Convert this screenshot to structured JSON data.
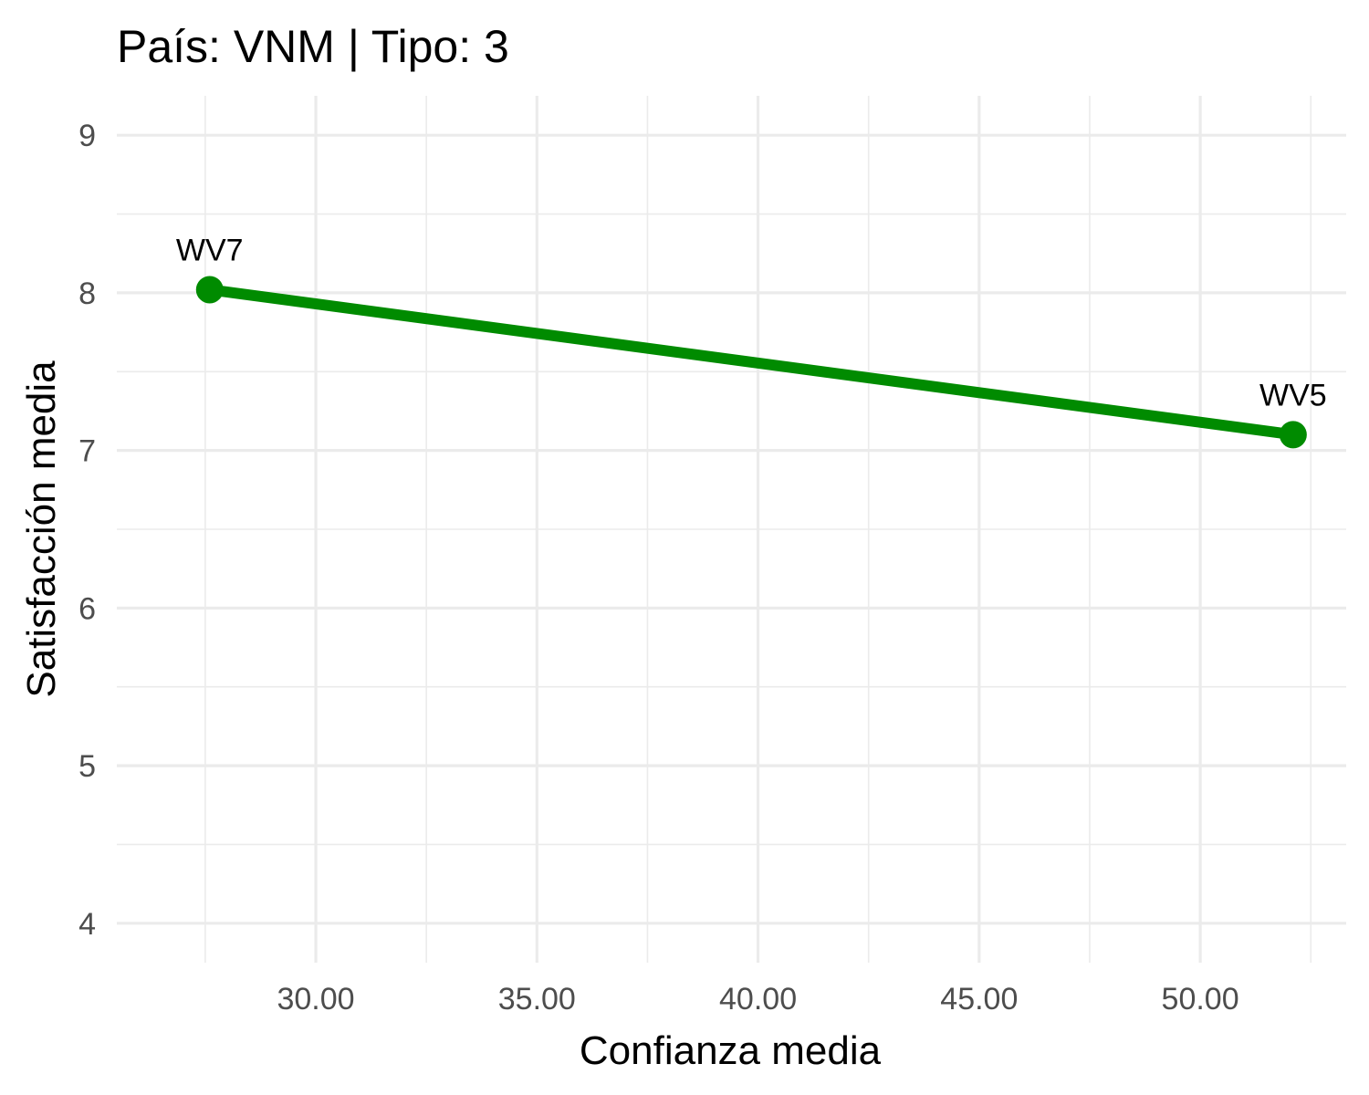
{
  "chart_data": {
    "type": "line",
    "title": "País: VNM | Tipo: 3",
    "xlabel": "Confianza media",
    "ylabel": "Satisfacción media",
    "xlim": [
      25.5,
      53.3
    ],
    "ylim": [
      3.75,
      9.25
    ],
    "x_ticks": [
      30,
      35,
      40,
      45,
      50
    ],
    "x_tick_labels": [
      "30.00",
      "35.00",
      "40.00",
      "45.00",
      "50.00"
    ],
    "y_ticks": [
      4,
      5,
      6,
      7,
      8,
      9
    ],
    "y_tick_labels": [
      "4",
      "5",
      "6",
      "7",
      "8",
      "9"
    ],
    "grid": true,
    "series": [
      {
        "color": "#008b00",
        "points": [
          {
            "label": "WV7",
            "x": 27.6,
            "y": 8.02
          },
          {
            "label": "WV5",
            "x": 52.1,
            "y": 7.1
          }
        ]
      }
    ]
  }
}
